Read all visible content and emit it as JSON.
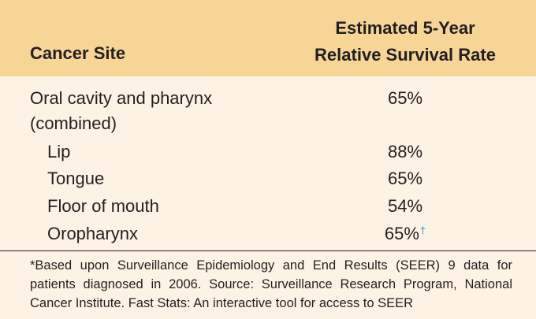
{
  "table": {
    "header": {
      "site": "Cancer Site",
      "rate_line1": "Estimated 5-Year",
      "rate_line2": "Relative Survival Rate"
    },
    "rows": [
      {
        "site_line1": "Oral cavity and pharynx",
        "site_line2": "(combined)",
        "rate": "65%"
      },
      {
        "site": "Lip",
        "rate": "88%"
      },
      {
        "site": "Tongue",
        "rate": "65%"
      },
      {
        "site": "Floor of mouth",
        "rate": "54%"
      },
      {
        "site": "Oropharynx",
        "rate": "65%",
        "mark": "†"
      }
    ],
    "footnote": "*Based upon Surveillance Epidemiology and End Results (SEER) 9 data for patients diagnosed in 2006. Source: Surveillance Research Program, National Cancer Institute. Fast Stats: An interactive tool for access to SEER"
  },
  "colors": {
    "header_bg": "#f7d597",
    "body_bg": "#fdf3e4",
    "dagger": "#2a8ad4"
  }
}
